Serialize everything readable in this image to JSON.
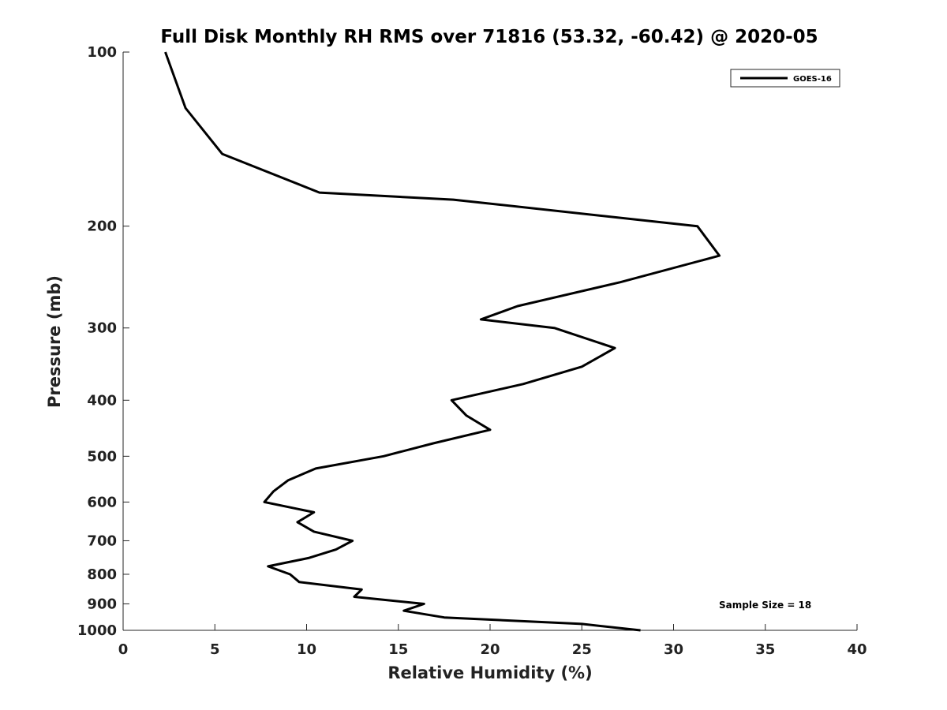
{
  "chart_data": {
    "type": "line",
    "title": "Full Disk Monthly RH RMS over 71816 (53.32, -60.42) @ 2020-05",
    "xlabel": "Relative Humidity (%)",
    "ylabel": "Pressure (mb)",
    "xlim": [
      0,
      40
    ],
    "ylim": [
      100,
      1000
    ],
    "y_scale": "log",
    "y_reversed": true,
    "x_ticks": [
      0,
      5,
      10,
      15,
      20,
      25,
      30,
      35,
      40
    ],
    "y_ticks": [
      100,
      200,
      300,
      400,
      500,
      600,
      700,
      800,
      900,
      1000
    ],
    "grid": false,
    "legend_position": "top-right",
    "annotation": "Sample Size = 18",
    "series": [
      {
        "name": "GOES-16",
        "color": "#000000",
        "points": [
          {
            "p": 100,
            "rh": 2.3
          },
          {
            "p": 125,
            "rh": 3.4
          },
          {
            "p": 150,
            "rh": 5.4
          },
          {
            "p": 175,
            "rh": 10.7
          },
          {
            "p": 180,
            "rh": 18.0
          },
          {
            "p": 200,
            "rh": 31.3
          },
          {
            "p": 225,
            "rh": 32.5
          },
          {
            "p": 250,
            "rh": 27.1
          },
          {
            "p": 275,
            "rh": 21.5
          },
          {
            "p": 290,
            "rh": 19.5
          },
          {
            "p": 300,
            "rh": 23.5
          },
          {
            "p": 325,
            "rh": 26.8
          },
          {
            "p": 350,
            "rh": 25.0
          },
          {
            "p": 375,
            "rh": 21.8
          },
          {
            "p": 400,
            "rh": 17.9
          },
          {
            "p": 425,
            "rh": 18.7
          },
          {
            "p": 450,
            "rh": 20.0
          },
          {
            "p": 475,
            "rh": 16.9
          },
          {
            "p": 500,
            "rh": 14.2
          },
          {
            "p": 525,
            "rh": 10.5
          },
          {
            "p": 550,
            "rh": 9.0
          },
          {
            "p": 575,
            "rh": 8.2
          },
          {
            "p": 600,
            "rh": 7.7
          },
          {
            "p": 625,
            "rh": 10.4
          },
          {
            "p": 650,
            "rh": 9.5
          },
          {
            "p": 675,
            "rh": 10.4
          },
          {
            "p": 700,
            "rh": 12.5
          },
          {
            "p": 725,
            "rh": 11.6
          },
          {
            "p": 750,
            "rh": 10.1
          },
          {
            "p": 775,
            "rh": 7.9
          },
          {
            "p": 800,
            "rh": 9.1
          },
          {
            "p": 825,
            "rh": 9.6
          },
          {
            "p": 850,
            "rh": 13.0
          },
          {
            "p": 875,
            "rh": 12.6
          },
          {
            "p": 900,
            "rh": 16.4
          },
          {
            "p": 925,
            "rh": 15.3
          },
          {
            "p": 950,
            "rh": 17.5
          },
          {
            "p": 975,
            "rh": 25.0
          },
          {
            "p": 1000,
            "rh": 28.2
          }
        ]
      }
    ]
  }
}
